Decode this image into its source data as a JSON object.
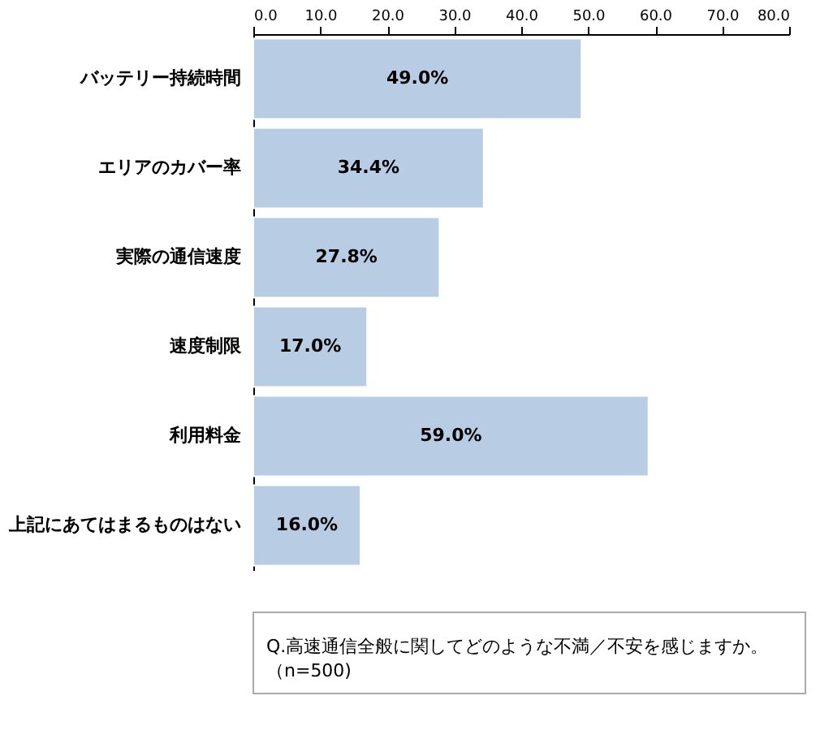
{
  "chart_data": {
    "type": "bar",
    "orientation": "horizontal",
    "categories": [
      "バッテリー持続時間",
      "エリアのカバー率",
      "実際の通信速度",
      "速度制限",
      "利用料金",
      "上記にあてはまるものはない"
    ],
    "values": [
      49.0,
      34.4,
      27.8,
      17.0,
      59.0,
      16.0
    ],
    "value_labels": [
      "49.0%",
      "34.4%",
      "27.8%",
      "17.0%",
      "59.0%",
      "16.0%"
    ],
    "color": "#b8cce4",
    "xlim": [
      0,
      80
    ],
    "xticks": [
      {
        "value": 0,
        "label": "0.0"
      },
      {
        "value": 10,
        "label": "10.0"
      },
      {
        "value": 20,
        "label": "20.0"
      },
      {
        "value": 30,
        "label": "30.0"
      },
      {
        "value": 40,
        "label": "40.0"
      },
      {
        "value": 50,
        "label": "50.0"
      },
      {
        "value": 60,
        "label": "60.0"
      },
      {
        "value": 70,
        "label": "70.0"
      },
      {
        "value": 80,
        "label": "80.0"
      }
    ],
    "grid": false,
    "annotations": [
      "Q.高速通信全般に関してどのような不満／不安を感じますか。",
      "（n=500)"
    ]
  }
}
